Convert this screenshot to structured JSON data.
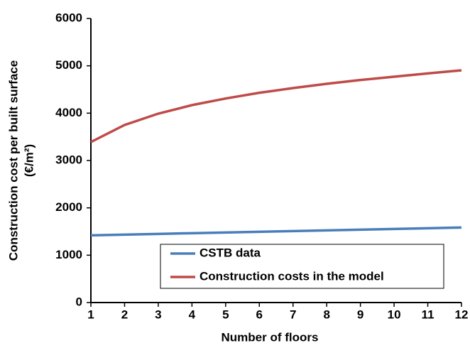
{
  "chart_data": {
    "type": "line",
    "xlabel": "Number of floors",
    "ylabel": [
      "Construction cost per built surface",
      "(€/m²)"
    ],
    "x": [
      1,
      2,
      3,
      4,
      5,
      6,
      7,
      8,
      9,
      10,
      11,
      12
    ],
    "series": [
      {
        "name": "CSTB data",
        "color": "#4a7ebb",
        "values": [
          1420,
          1435,
          1450,
          1465,
          1480,
          1495,
          1510,
          1525,
          1540,
          1555,
          1570,
          1585
        ]
      },
      {
        "name": "Construction costs in the model",
        "color": "#be4b48",
        "values": [
          3390,
          3750,
          3990,
          4170,
          4310,
          4430,
          4530,
          4620,
          4700,
          4770,
          4840,
          4905
        ]
      }
    ],
    "xlim": [
      1,
      12
    ],
    "xticks": [
      1,
      2,
      3,
      4,
      5,
      6,
      7,
      8,
      9,
      10,
      11,
      12
    ],
    "ylim": [
      0,
      6000
    ],
    "yticks": [
      0,
      1000,
      2000,
      3000,
      4000,
      5000,
      6000
    ],
    "grid": false
  }
}
